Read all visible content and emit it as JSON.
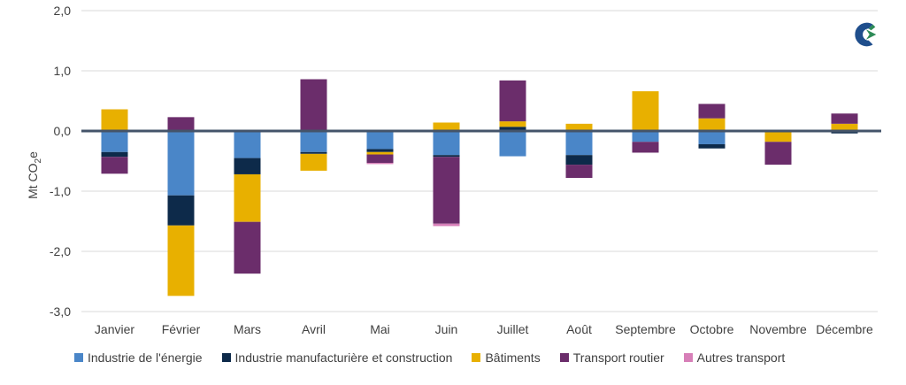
{
  "chart_data": {
    "type": "bar",
    "stacked": true,
    "ylabel": "Mt CO",
    "ylabel_sub": "2",
    "ylabel_suffix": "e",
    "ylim": [
      -3.0,
      2.0
    ],
    "yticks": [
      2.0,
      1.0,
      0.0,
      -1.0,
      -2.0,
      -3.0
    ],
    "ytick_labels": [
      "2,0",
      "1,0",
      "0,0",
      "-1,0",
      "-2,0",
      "-3,0"
    ],
    "grid": true,
    "legend_position": "bottom",
    "categories": [
      "Janvier",
      "Février",
      "Mars",
      "Avril",
      "Mai",
      "Juin",
      "Juillet",
      "Août",
      "Septembre",
      "Octobre",
      "Novembre",
      "Décembre"
    ],
    "series": [
      {
        "name": "Industrie de l'énergie",
        "color": "#4a86c8",
        "values": [
          -0.35,
          -1.07,
          -0.45,
          -0.35,
          -0.3,
          -0.4,
          -0.42,
          -0.4,
          -0.18,
          -0.22,
          0.0,
          -0.02
        ]
      },
      {
        "name": "Industrie manufacturière et construction",
        "color": "#0d2a4a",
        "values": [
          -0.08,
          -0.5,
          -0.27,
          -0.03,
          -0.05,
          -0.03,
          0.07,
          -0.16,
          0.0,
          -0.07,
          0.0,
          -0.02
        ]
      },
      {
        "name": "Bâtiments",
        "color": "#e8b000",
        "values": [
          0.36,
          -1.17,
          -0.79,
          -0.28,
          -0.04,
          0.14,
          0.09,
          0.12,
          0.66,
          0.21,
          -0.18,
          0.12
        ]
      },
      {
        "name": "Transport routier",
        "color": "#6b2d6b",
        "values": [
          -0.28,
          0.23,
          -0.86,
          0.86,
          -0.14,
          -1.11,
          0.68,
          -0.22,
          -0.18,
          0.24,
          -0.38,
          0.17
        ]
      },
      {
        "name": "Autres transport",
        "color": "#d77fb8",
        "values": [
          0.0,
          0.0,
          0.0,
          0.0,
          -0.02,
          -0.04,
          0.0,
          0.0,
          0.0,
          0.0,
          0.0,
          0.0
        ]
      }
    ]
  },
  "brand": {
    "logo_icon": "c-arrow-logo-icon",
    "logo_colors": [
      "#1f4e8c",
      "#2e8b57"
    ]
  }
}
